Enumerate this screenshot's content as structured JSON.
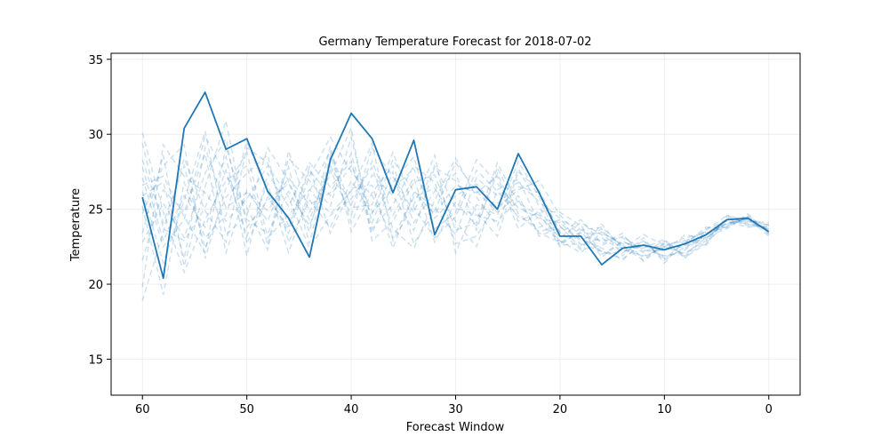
{
  "chart_data": {
    "type": "line",
    "title": "Germany Temperature Forecast for 2018-07-02",
    "xlabel": "Forecast Window",
    "ylabel": "Temperature",
    "xlim": [
      63,
      -3
    ],
    "ylim": [
      12.6,
      35.4
    ],
    "x_ticks": [
      60,
      50,
      40,
      30,
      20,
      10,
      0
    ],
    "y_ticks": [
      15,
      20,
      25,
      30,
      35
    ],
    "grid": true,
    "x_axis_reversed": true,
    "x": [
      60,
      58,
      56,
      54,
      52,
      50,
      48,
      46,
      44,
      42,
      40,
      38,
      36,
      34,
      32,
      30,
      28,
      26,
      24,
      22,
      20,
      18,
      16,
      14,
      12,
      10,
      8,
      6,
      4,
      2,
      0
    ],
    "main_series": {
      "style": "solid",
      "color": "#1f77b4",
      "values": [
        25.8,
        20.4,
        30.4,
        32.8,
        29.0,
        29.7,
        26.2,
        24.4,
        21.8,
        28.3,
        31.4,
        29.7,
        26.1,
        29.6,
        23.3,
        26.3,
        26.5,
        25.0,
        28.7,
        26.1,
        23.2,
        23.2,
        21.3,
        22.4,
        22.6,
        22.3,
        22.7,
        23.3,
        24.3,
        24.4,
        23.5
      ]
    },
    "ensemble": {
      "style": "dashed",
      "color": "#1f77b4",
      "opacity": 0.22,
      "members": [
        [
          25.2,
          19.3,
          26.8,
          23.1,
          24.6,
          29.5,
          26.1,
          23.4,
          27.2,
          29.8,
          27.5,
          25.9,
          23.1,
          25.8,
          26.4,
          24.2,
          22.5,
          26.3,
          27.0,
          24.1,
          22.9,
          22.1,
          23.5,
          22.6,
          21.8,
          22.5,
          22.0,
          23.1,
          24.1,
          24.2,
          23.6
        ],
        [
          27.1,
          22.5,
          24.3,
          29.9,
          27.2,
          25.1,
          22.3,
          28.4,
          26.9,
          25.2,
          29.8,
          24.1,
          27.5,
          22.7,
          24.9,
          28.1,
          26.2,
          24.8,
          25.9,
          23.2,
          23.8,
          23.0,
          22.4,
          21.6,
          22.9,
          21.7,
          22.8,
          23.6,
          24.6,
          24.0,
          23.8
        ],
        [
          23.4,
          28.6,
          21.2,
          26.5,
          30.9,
          23.8,
          25.6,
          26.7,
          24.3,
          27.9,
          25.3,
          28.2,
          24.6,
          27.1,
          22.8,
          25.5,
          23.9,
          27.4,
          24.2,
          24.8,
          22.5,
          23.8,
          21.8,
          22.9,
          22.1,
          22.9,
          21.9,
          22.8,
          24.0,
          24.5,
          23.4
        ],
        [
          28.3,
          24.1,
          27.9,
          22.4,
          25.8,
          27.4,
          28.6,
          22.8,
          25.6,
          23.8,
          26.9,
          24.7,
          28.3,
          26.2,
          25.1,
          23.3,
          27.1,
          25.9,
          26.8,
          25.5,
          24.4,
          22.6,
          23.1,
          22.2,
          22.6,
          22.2,
          23.3,
          23.0,
          24.3,
          24.3,
          23.9
        ],
        [
          21.6,
          26.3,
          24.8,
          28.7,
          22.1,
          26.3,
          24.2,
          27.8,
          22.7,
          28.6,
          24.1,
          27.3,
          25.9,
          23.6,
          27.8,
          26.9,
          24.8,
          23.2,
          27.5,
          26.3,
          23.4,
          24.3,
          22.7,
          23.4,
          21.5,
          22.7,
          22.4,
          23.4,
          23.8,
          24.7,
          23.3
        ],
        [
          29.4,
          23.7,
          22.9,
          25.1,
          28.5,
          21.9,
          27.4,
          25.2,
          28.1,
          26.5,
          28.2,
          23.4,
          26.8,
          28.5,
          23.7,
          24.8,
          28.3,
          26.7,
          25.1,
          24.4,
          24.1,
          22.9,
          23.7,
          21.9,
          23.1,
          21.4,
          23.0,
          22.6,
          24.5,
          24.1,
          23.7
        ],
        [
          24.7,
          27.9,
          29.3,
          21.7,
          26.4,
          28.8,
          23.1,
          24.6,
          26.3,
          24.7,
          26.2,
          29.4,
          22.9,
          25.3,
          28.6,
          22.1,
          25.3,
          24.6,
          28.2,
          25.8,
          22.7,
          23.5,
          22.0,
          22.8,
          22.4,
          23.0,
          21.7,
          23.7,
          24.2,
          23.8,
          24.0
        ],
        [
          26.2,
          21.4,
          25.6,
          30.2,
          23.3,
          24.6,
          29.1,
          26.9,
          23.5,
          29.2,
          23.5,
          26.1,
          27.9,
          24.1,
          26.2,
          27.4,
          23.6,
          27.8,
          24.7,
          23.5,
          23.9,
          22.4,
          24.0,
          22.3,
          21.9,
          22.4,
          22.6,
          23.2,
          23.7,
          24.6,
          23.5
        ],
        [
          22.8,
          25.4,
          23.1,
          27.4,
          29.7,
          22.7,
          25.8,
          23.7,
          27.6,
          25.9,
          27.9,
          24.8,
          26.4,
          27.7,
          24.4,
          25.9,
          26.7,
          25.1,
          26.3,
          26.9,
          24.6,
          23.2,
          22.9,
          23.1,
          22.3,
          21.9,
          22.1,
          22.9,
          24.4,
          23.9,
          23.8
        ],
        [
          30.1,
          24.8,
          20.8,
          24.3,
          26.9,
          27.9,
          22.6,
          28.9,
          24.8,
          27.3,
          30.4,
          22.9,
          24.2,
          26.8,
          27.3,
          23.6,
          24.1,
          28.1,
          25.4,
          24.6,
          23.1,
          24.1,
          23.3,
          22.4,
          23.3,
          22.6,
          22.9,
          23.5,
          23.9,
          24.4,
          23.2
        ],
        [
          19.8,
          29.3,
          27.2,
          26.1,
          24.2,
          25.7,
          27.9,
          25.8,
          22.4,
          24.6,
          25.7,
          27.8,
          23.7,
          22.4,
          25.6,
          28.4,
          25.8,
          23.9,
          27.7,
          25.2,
          22.6,
          22.7,
          22.2,
          21.7,
          22.7,
          21.8,
          22.3,
          23.3,
          24.1,
          24.3,
          23.6
        ],
        [
          27.8,
          22.9,
          25.9,
          23.8,
          27.6,
          23.2,
          26.7,
          22.1,
          26.2,
          28.9,
          25.1,
          25.3,
          28.8,
          25.1,
          23.1,
          24.5,
          27.6,
          26.2,
          24.5,
          23.8,
          24.3,
          23.6,
          23.8,
          22.5,
          21.6,
          22.8,
          21.8,
          22.7,
          24.6,
          24.2,
          24.1
        ],
        [
          25.9,
          26.8,
          21.7,
          29.1,
          25.1,
          26.1,
          24.9,
          27.1,
          25.3,
          26.1,
          28.7,
          23.7,
          25.3,
          27.9,
          26.8,
          22.7,
          23.2,
          25.4,
          26.5,
          26.1,
          23.5,
          22.3,
          22.6,
          23.2,
          22.2,
          22.3,
          22.7,
          23.8,
          23.8,
          24.5,
          23.4
        ],
        [
          18.9,
          23.5,
          28.4,
          24.9,
          22.8,
          29.1,
          28.1,
          23.9,
          27.8,
          23.4,
          26.4,
          26.6,
          22.4,
          26.1,
          24.7,
          26.6,
          26.1,
          27.2,
          23.7,
          24.9,
          24.8,
          23.9,
          22.1,
          22.1,
          22.9,
          21.6,
          22.5,
          23.1,
          24.3,
          24.0,
          23.7
        ],
        [
          26.6,
          27.2,
          24.5,
          22.1,
          29.2,
          24.3,
          23.4,
          26.2,
          23.9,
          27.6,
          24.6,
          29.1,
          27.2,
          24.8,
          27.9,
          25.1,
          24.6,
          24.2,
          25.6,
          23.4,
          22.8,
          23.4,
          23.4,
          22.7,
          22.5,
          22.5,
          23.1,
          23.4,
          24.0,
          24.4,
          23.9
        ]
      ]
    }
  }
}
